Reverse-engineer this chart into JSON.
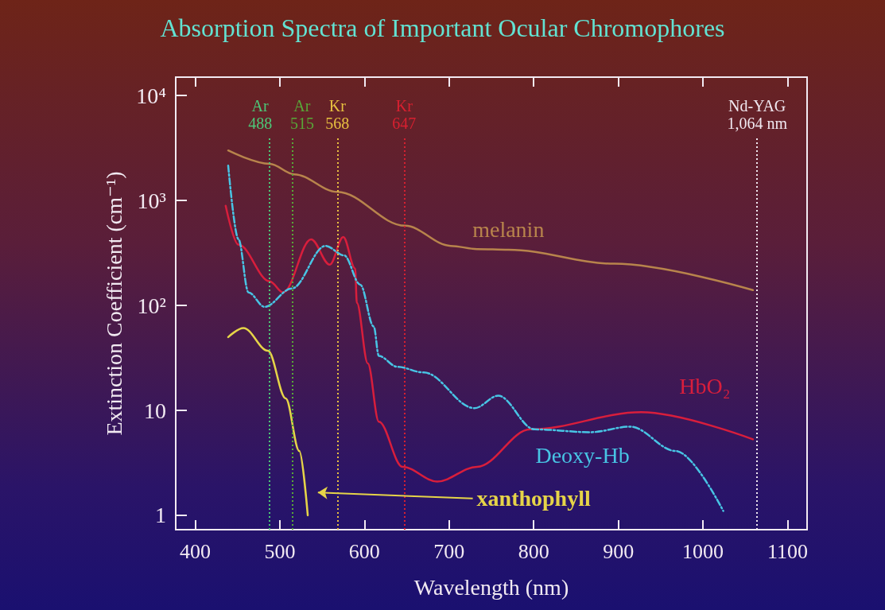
{
  "chart_data": {
    "type": "line",
    "title": "Absorption Spectra of Important Ocular Chromophores",
    "xlabel": "Wavelength (nm)",
    "ylabel": "Extinction Coefficient (cm⁻¹)",
    "log": "y",
    "grid": false,
    "legend": false,
    "marker": "none",
    "xlim": [
      377,
      1123
    ],
    "xticks": [
      400,
      500,
      600,
      700,
      800,
      900,
      1000,
      1100
    ],
    "ylim": [
      0.73,
      15000
    ],
    "yticks": [
      {
        "value": 1,
        "label": "1"
      },
      {
        "value": 10,
        "label": "10"
      },
      {
        "value": 100,
        "label": "10²"
      },
      {
        "value": 1000,
        "label": "10³"
      },
      {
        "value": 10000,
        "label": "10⁴"
      }
    ],
    "series": [
      {
        "name": "melanin",
        "color": "#b8844c",
        "line_style": "solid",
        "x": [
          439,
          488,
          517,
          568,
          648,
          702,
          733,
          770,
          895,
          1059
        ],
        "values": [
          3000,
          2240,
          1780,
          1210,
          575,
          370,
          345,
          340,
          250,
          140
        ]
      },
      {
        "name": "HbO₂",
        "color": "#d81e3c",
        "line_style": "solid",
        "x": [
          436,
          451,
          488,
          504,
          537,
          559,
          575,
          589,
          591,
          604,
          617,
          645,
          686,
          733,
          796,
          927,
          1059
        ],
        "values": [
          890,
          380,
          170,
          133,
          427,
          245,
          450,
          225,
          106,
          28,
          7.8,
          2.9,
          2.1,
          2.9,
          6.6,
          9.6,
          5.3
        ]
      },
      {
        "name": "Deoxy-Hb",
        "color": "#48c4e4",
        "line_style": "dashed",
        "x": [
          439,
          451,
          463,
          482,
          514,
          554,
          576,
          595,
          611,
          617,
          639,
          670,
          730,
          758,
          801,
          867,
          914,
          968,
          1024
        ],
        "values": [
          2150,
          430,
          133,
          97,
          145,
          370,
          300,
          158,
          63,
          33,
          26,
          23,
          10.5,
          13.8,
          6.6,
          6.2,
          7.0,
          4.1,
          1.1
        ]
      },
      {
        "name": "xanthophyll",
        "color": "#e6d448",
        "line_style": "solid",
        "x": [
          439,
          457,
          486,
          507,
          523,
          533
        ],
        "values": [
          50,
          61,
          37,
          13,
          4.1,
          1.0
        ]
      }
    ],
    "ref_lines": [
      {
        "axis": "x",
        "value": 488,
        "label": "Ar 488",
        "color": "#4cc878",
        "line_style": "dotted"
      },
      {
        "axis": "x",
        "value": 515,
        "label": "Ar 515",
        "color": "#58a838",
        "line_style": "dotted"
      },
      {
        "axis": "x",
        "value": 568,
        "label": "Kr 568",
        "color": "#e8c040",
        "line_style": "dotted"
      },
      {
        "axis": "x",
        "value": 647,
        "label": "Kr 647",
        "color": "#d82030",
        "line_style": "dotted"
      },
      {
        "axis": "x",
        "value": 1064,
        "label": "Nd-YAG 1,064 nm",
        "color": "#f0e8f0",
        "line_style": "dotted"
      }
    ]
  }
}
